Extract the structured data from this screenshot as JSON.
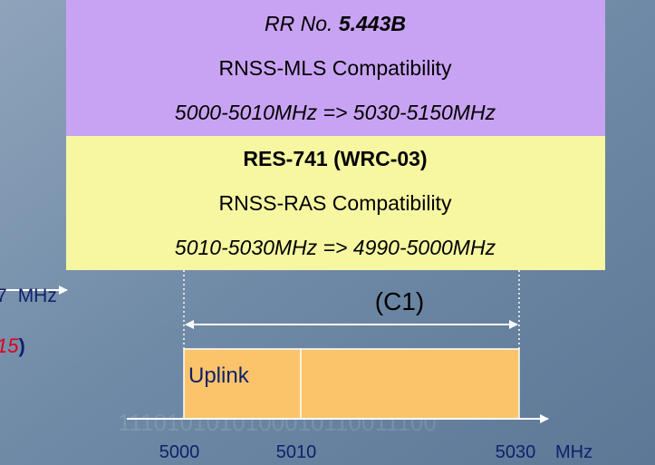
{
  "mls_box": {
    "ref_prefix": "RR No.",
    "ref_number": "5.443B",
    "title": "RNSS-MLS Compatibility",
    "bands": "5000-5010MHz => 5030-5150MHz"
  },
  "ras_box": {
    "ref": "RES-741 (WRC-03)",
    "title": "RNSS-RAS Compatibility",
    "bands": "5010-5030MHz => 4990-5000MHz"
  },
  "left_fragment": {
    "unit_value": "7",
    "unit": "MHz",
    "note_number": "15",
    "note_close": ")"
  },
  "band_diagram": {
    "span_label": "(C1)",
    "block_label": "Uplink",
    "axis_labels": [
      "5000",
      "5010",
      "5030"
    ],
    "axis_unit": "MHz"
  }
}
